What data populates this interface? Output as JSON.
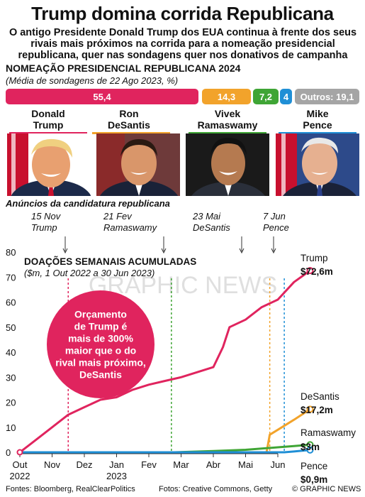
{
  "title": "Trump domina corrida Republicana",
  "subtitle": "O antigo Presidente Donald Trump dos EUA continua à frente dos seus rivais mais próximos na corrida para a nomeação presidencial republicana, quer nas sondagens quer nos donativos de campanha",
  "poll": {
    "title": "NOMEAÇÃO PRESIDENCIAL REPUBLICANA 2024",
    "subtitle": "(Média de sondagens de 22 Ago 2023, %)",
    "bars": [
      {
        "label": "55,4",
        "value": 55.4,
        "color": "#e0245e"
      },
      {
        "label": "14,3",
        "value": 14.3,
        "color": "#f2a32b"
      },
      {
        "label": "7,2",
        "value": 7.2,
        "color": "#3fa535"
      },
      {
        "label": "4",
        "value": 4,
        "color": "#1f8fd6"
      },
      {
        "label": "Outros: 19,1",
        "value": 19.1,
        "color": "#a5a5a5"
      }
    ]
  },
  "candidates": [
    {
      "first": "Donald",
      "last": "Trump",
      "color": "#e0245e",
      "portrait": "trump-portrait"
    },
    {
      "first": "Ron",
      "last": "DeSantis",
      "color": "#f2a32b",
      "portrait": "desantis-portrait"
    },
    {
      "first": "Vivek",
      "last": "Ramaswamy",
      "color": "#3fa535",
      "portrait": "ramaswamy-portrait"
    },
    {
      "first": "Mike",
      "last": "Pence",
      "color": "#1f8fd6",
      "portrait": "pence-portrait"
    }
  ],
  "announcements": {
    "title": "Anúncios da candidatura republicana",
    "items": [
      {
        "date": "15 Nov",
        "name": "Trump"
      },
      {
        "date": "21 Fev",
        "name": "Ramaswamy"
      },
      {
        "date": "23 Mai",
        "name": "DeSantis"
      },
      {
        "date": "7 Jun",
        "name": "Pence"
      }
    ]
  },
  "callout": {
    "lines": [
      "Orçamento",
      "de Trump é",
      "mais de 300%",
      "maior que o do",
      "rival mais próximo,",
      "DeSantis"
    ],
    "color": "#e0245e"
  },
  "watermark": "GRAPHIC NEWS",
  "footer": {
    "sources": "Fontes: Bloomberg, RealClearPolitics",
    "photos": "Fotos: Creative Commons, Getty",
    "credit": "© GRAPHIC NEWS"
  },
  "chart_data": {
    "type": "line",
    "title": "DOAÇÕES SEMANAIS ACUMULADAS",
    "subtitle": "($m, 1 Out 2022 a 30 Jun 2023)",
    "x_ticks": [
      "Out 2022",
      "Nov",
      "Dez",
      "Jan 2023",
      "Fev",
      "Mar",
      "Abr",
      "Mai",
      "Jun"
    ],
    "ylim": [
      0,
      80
    ],
    "y_ticks": [
      0,
      10,
      20,
      30,
      40,
      50,
      60,
      70,
      80
    ],
    "grid": false,
    "series": [
      {
        "name": "Trump",
        "end_label": "$72,6m",
        "color": "#e0245e",
        "x": [
          0,
          0.5,
          1,
          1.5,
          2,
          2.5,
          3,
          3.5,
          4,
          4.5,
          5,
          5.5,
          6,
          6.3,
          6.5,
          7,
          7.5,
          8,
          8.5,
          9
        ],
        "y": [
          0,
          5,
          10,
          15,
          18,
          21,
          22,
          25,
          27,
          28.5,
          30,
          32,
          34,
          42,
          50,
          53,
          58,
          61,
          68,
          72.6
        ]
      },
      {
        "name": "DeSantis",
        "end_label": "$17,2m",
        "color": "#f2a32b",
        "x": [
          0,
          7,
          7.65,
          7.75,
          8,
          8.5,
          9
        ],
        "y": [
          0,
          0,
          0,
          7,
          9,
          13,
          17.2
        ]
      },
      {
        "name": "Ramaswamy",
        "end_label": "$3m",
        "color": "#3fa535",
        "x": [
          0,
          4.8,
          6,
          7,
          8,
          8.5,
          9
        ],
        "y": [
          0,
          0,
          0.5,
          1,
          2,
          2.5,
          3
        ]
      },
      {
        "name": "Pence",
        "end_label": "$0,9m",
        "color": "#1f8fd6",
        "x": [
          0,
          8.2,
          8.5,
          9
        ],
        "y": [
          0,
          0,
          0.3,
          0.9
        ]
      }
    ],
    "events": [
      {
        "x": 1.5,
        "color": "#e0245e"
      },
      {
        "x": 4.7,
        "color": "#3fa535"
      },
      {
        "x": 7.75,
        "color": "#f2a32b"
      },
      {
        "x": 8.2,
        "color": "#1f8fd6"
      }
    ]
  }
}
